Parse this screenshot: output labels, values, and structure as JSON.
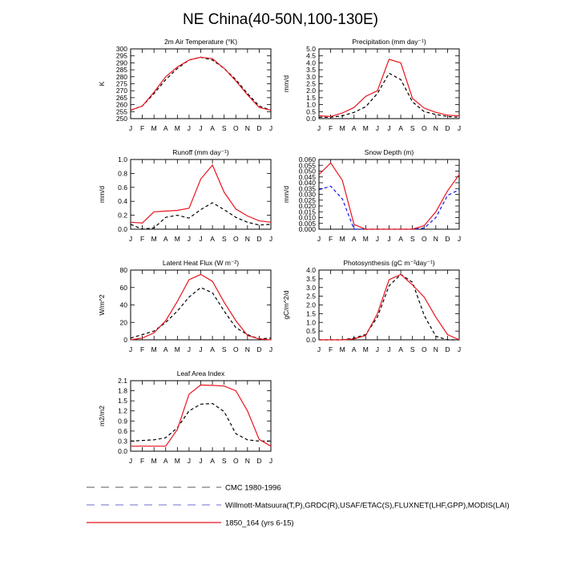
{
  "page_title": "NE China(40-50N,100-130E)",
  "chart_data": [
    {
      "type": "line",
      "title": "2m Air Temperature (°K)",
      "ylabel": "K",
      "x": [
        "J",
        "F",
        "M",
        "A",
        "M",
        "J",
        "J",
        "A",
        "S",
        "O",
        "N",
        "D",
        "J"
      ],
      "ylim": [
        250,
        300
      ],
      "yticks": [
        250,
        255,
        260,
        265,
        270,
        275,
        280,
        285,
        290,
        295,
        300
      ],
      "series": [
        {
          "name": "CMC 1980-1996",
          "color": "#000000",
          "dash": true,
          "values": [
            256,
            259,
            268,
            278,
            286,
            292,
            294,
            292,
            286,
            278,
            268,
            259,
            256
          ]
        },
        {
          "name": "1850_164 (yrs 6-15)",
          "color": "#e8141e",
          "dash": false,
          "values": [
            256,
            259,
            269,
            280,
            287,
            292,
            294,
            293,
            286,
            277,
            267,
            258,
            256
          ]
        }
      ]
    },
    {
      "type": "line",
      "title": "Precipitation (mm day⁻¹)",
      "ylabel": "mm/d",
      "x": [
        "J",
        "F",
        "M",
        "A",
        "M",
        "J",
        "J",
        "A",
        "S",
        "O",
        "N",
        "D",
        "J"
      ],
      "ylim": [
        0,
        5
      ],
      "yticks": [
        0.0,
        0.5,
        1.0,
        1.5,
        2.0,
        2.5,
        3.0,
        3.5,
        4.0,
        4.5,
        5.0
      ],
      "series": [
        {
          "name": "CMC 1980-1996",
          "color": "#000000",
          "dash": true,
          "values": [
            0.1,
            0.1,
            0.2,
            0.45,
            0.85,
            1.8,
            3.25,
            2.8,
            1.2,
            0.5,
            0.3,
            0.15,
            0.1
          ]
        },
        {
          "name": "1850_164 (yrs 6-15)",
          "color": "#e8141e",
          "dash": false,
          "values": [
            0.2,
            0.15,
            0.4,
            0.8,
            1.6,
            2.0,
            4.25,
            4.0,
            1.45,
            0.75,
            0.45,
            0.25,
            0.2
          ]
        }
      ]
    },
    {
      "type": "line",
      "title": "Runoff (mm day⁻¹)",
      "ylabel": "mm/d",
      "x": [
        "J",
        "F",
        "M",
        "A",
        "M",
        "J",
        "J",
        "A",
        "S",
        "O",
        "N",
        "D",
        "J"
      ],
      "ylim": [
        0,
        1
      ],
      "yticks": [
        0.0,
        0.2,
        0.4,
        0.6,
        0.8,
        1.0
      ],
      "series": [
        {
          "name": "CMC 1980-1996",
          "color": "#000000",
          "dash": true,
          "values": [
            0.07,
            0.0,
            0.02,
            0.17,
            0.2,
            0.16,
            0.28,
            0.38,
            0.28,
            0.17,
            0.1,
            0.06,
            0.07
          ]
        },
        {
          "name": "1850_164 (yrs 6-15)",
          "color": "#e8141e",
          "dash": false,
          "values": [
            0.1,
            0.09,
            0.25,
            0.26,
            0.27,
            0.3,
            0.72,
            0.92,
            0.53,
            0.29,
            0.19,
            0.12,
            0.1
          ]
        }
      ]
    },
    {
      "type": "line",
      "title": "Snow Depth (m)",
      "ylabel": "mm/d",
      "x": [
        "J",
        "F",
        "M",
        "A",
        "M",
        "J",
        "J",
        "A",
        "S",
        "O",
        "N",
        "D",
        "J"
      ],
      "ylim": [
        0,
        0.06
      ],
      "yticks": [
        0.0,
        0.005,
        0.01,
        0.015,
        0.02,
        0.025,
        0.03,
        0.035,
        0.04,
        0.045,
        0.05,
        0.055,
        0.06
      ],
      "ytick_labels": [
        "0.000",
        "0.005",
        "0.010",
        "0.015",
        "0.020",
        "0.025",
        "0.030",
        "0.035",
        "0.040",
        "0.045",
        "0.050",
        "0.055",
        "0.060"
      ],
      "series": [
        {
          "name": "Willmott-Matsuura(T,P),GRDC(R),USAF/ETAC(S),FLUXNET(LHF,GPP),MODIS(LAI)",
          "color": "#1414e6",
          "dash": true,
          "values": [
            0.034,
            0.037,
            0.026,
            0.0,
            0.0,
            0.0,
            0.0,
            0.0,
            0.0,
            0.001,
            0.01,
            0.029,
            0.034
          ]
        },
        {
          "name": "1850_164 (yrs 6-15)",
          "color": "#e8141e",
          "dash": false,
          "values": [
            0.047,
            0.057,
            0.042,
            0.004,
            0.0,
            0.0,
            0.0,
            0.0,
            0.0,
            0.003,
            0.015,
            0.033,
            0.047
          ]
        }
      ]
    },
    {
      "type": "line",
      "title": "Latent Heat Flux (W m⁻²)",
      "ylabel": "W/m^2",
      "x": [
        "J",
        "F",
        "M",
        "A",
        "M",
        "J",
        "J",
        "A",
        "S",
        "O",
        "N",
        "D",
        "J"
      ],
      "ylim": [
        0,
        80
      ],
      "yticks": [
        0,
        20,
        40,
        60,
        80
      ],
      "series": [
        {
          "name": "CMC 1980-1996",
          "color": "#000000",
          "dash": true,
          "values": [
            2,
            6,
            10,
            20,
            33,
            49,
            60,
            54,
            33,
            14,
            6,
            1,
            2
          ]
        },
        {
          "name": "1850_164 (yrs 6-15)",
          "color": "#e8141e",
          "dash": false,
          "values": [
            0,
            2,
            8,
            22,
            44,
            69,
            75,
            67,
            43,
            22,
            5,
            1,
            0
          ]
        }
      ]
    },
    {
      "type": "line",
      "title": "Photosynthesis (gC m⁻²day⁻¹)",
      "ylabel": "gC/m^2/d",
      "x": [
        "J",
        "F",
        "M",
        "A",
        "M",
        "J",
        "J",
        "A",
        "S",
        "O",
        "N",
        "D",
        "J"
      ],
      "ylim": [
        0,
        4
      ],
      "yticks": [
        0.0,
        0.5,
        1.0,
        1.5,
        2.0,
        2.5,
        3.0,
        3.5,
        4.0
      ],
      "series": [
        {
          "name": "CMC 1980-1996",
          "color": "#000000",
          "dash": true,
          "values": [
            0.0,
            0.0,
            0.0,
            0.1,
            0.3,
            1.3,
            3.1,
            3.75,
            3.3,
            1.4,
            0.2,
            0.0,
            0.0
          ]
        },
        {
          "name": "1850_164 (yrs 6-15)",
          "color": "#e8141e",
          "dash": false,
          "values": [
            0.0,
            0.0,
            0.0,
            0.05,
            0.25,
            1.5,
            3.45,
            3.75,
            3.15,
            2.45,
            1.3,
            0.3,
            0.0
          ]
        }
      ]
    },
    {
      "type": "line",
      "title": "Leaf Area Index",
      "ylabel": "m2/m2",
      "x": [
        "J",
        "F",
        "M",
        "A",
        "M",
        "J",
        "J",
        "A",
        "S",
        "O",
        "N",
        "D",
        "J"
      ],
      "ylim": [
        0,
        2.1
      ],
      "yticks": [
        0.0,
        0.3,
        0.6,
        0.9,
        1.2,
        1.5,
        1.8,
        2.1
      ],
      "series": [
        {
          "name": "CMC 1980-1996",
          "color": "#000000",
          "dash": true,
          "values": [
            0.3,
            0.32,
            0.34,
            0.4,
            0.7,
            1.2,
            1.4,
            1.42,
            1.18,
            0.52,
            0.34,
            0.3,
            0.3
          ]
        },
        {
          "name": "1850_164 (yrs 6-15)",
          "color": "#e8141e",
          "dash": false,
          "values": [
            0.15,
            0.15,
            0.15,
            0.15,
            0.65,
            1.7,
            1.97,
            1.96,
            1.94,
            1.8,
            1.2,
            0.35,
            0.15
          ]
        }
      ]
    }
  ],
  "legend": [
    {
      "label": "CMC 1980-1996",
      "color": "#7a7a7a",
      "dash": true
    },
    {
      "label": "Willmott-Matsuura(T,P),GRDC(R),USAF/ETAC(S),FLUXNET(LHF,GPP),MODIS(LAI)",
      "color": "#8a8ad8",
      "dash": true
    },
    {
      "label": "1850_164 (yrs 6-15)",
      "color": "#e8141e",
      "dash": false
    }
  ]
}
